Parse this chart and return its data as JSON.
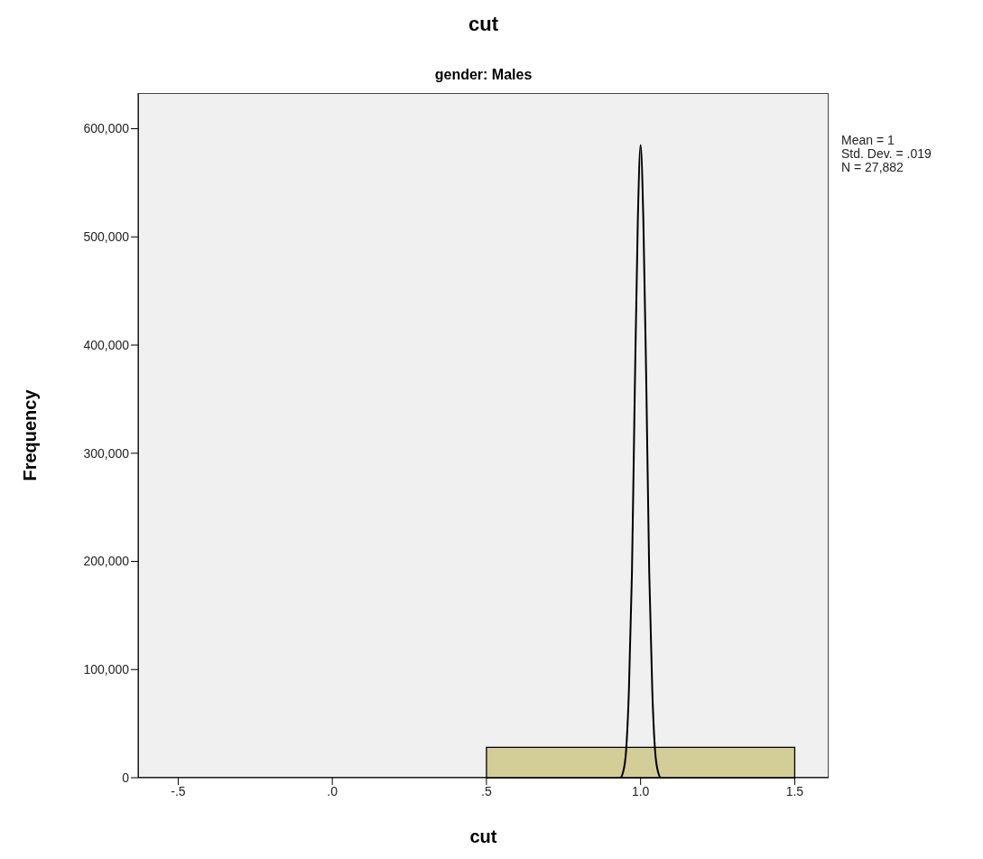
{
  "chart_data": {
    "type": "histogram",
    "title": "cut",
    "subtitle": "gender: Males",
    "xlabel": "cut",
    "ylabel": "Frequency",
    "bins": [
      0.5,
      1.5
    ],
    "values": [
      28000
    ],
    "color": "#d3ce97",
    "series": [
      {
        "type": "line",
        "color": "#000000",
        "x": [
          0.924,
          0.934,
          0.943,
          0.953,
          0.962,
          0.972,
          0.981,
          0.991,
          1.0,
          1.009,
          1.019,
          1.028,
          1.038,
          1.047,
          1.057,
          1.066,
          1.076
        ],
        "values": [
          0,
          0,
          5000,
          25000,
          80000,
          190000,
          355000,
          515000,
          585000,
          515000,
          355000,
          190000,
          80000,
          25000,
          5000,
          0,
          0
        ]
      }
    ],
    "marker": "none",
    "xlim": [
      -0.63,
      1.61
    ],
    "xticks": [
      {
        "value": -0.5,
        "label": "-.5"
      },
      {
        "value": 0,
        "label": ".0"
      },
      {
        "value": 0.5,
        "label": ".5"
      },
      {
        "value": 1,
        "label": "1.0"
      },
      {
        "value": 1.5,
        "label": "1.5"
      }
    ],
    "ylim": [
      0,
      633000
    ],
    "yticks": [
      0,
      {
        "value": 100000,
        "label": "100,000"
      },
      {
        "value": 200000,
        "label": "200,000"
      },
      {
        "value": 300000,
        "label": "300,000"
      },
      {
        "value": 400000,
        "label": "400,000"
      },
      {
        "value": 500000,
        "label": "500,000"
      },
      {
        "value": 600000,
        "label": "600,000"
      }
    ],
    "grid": false,
    "legend": false,
    "annotations": [
      "Mean = 1",
      "Std. Dev. = .019",
      "N = 27,882"
    ]
  }
}
